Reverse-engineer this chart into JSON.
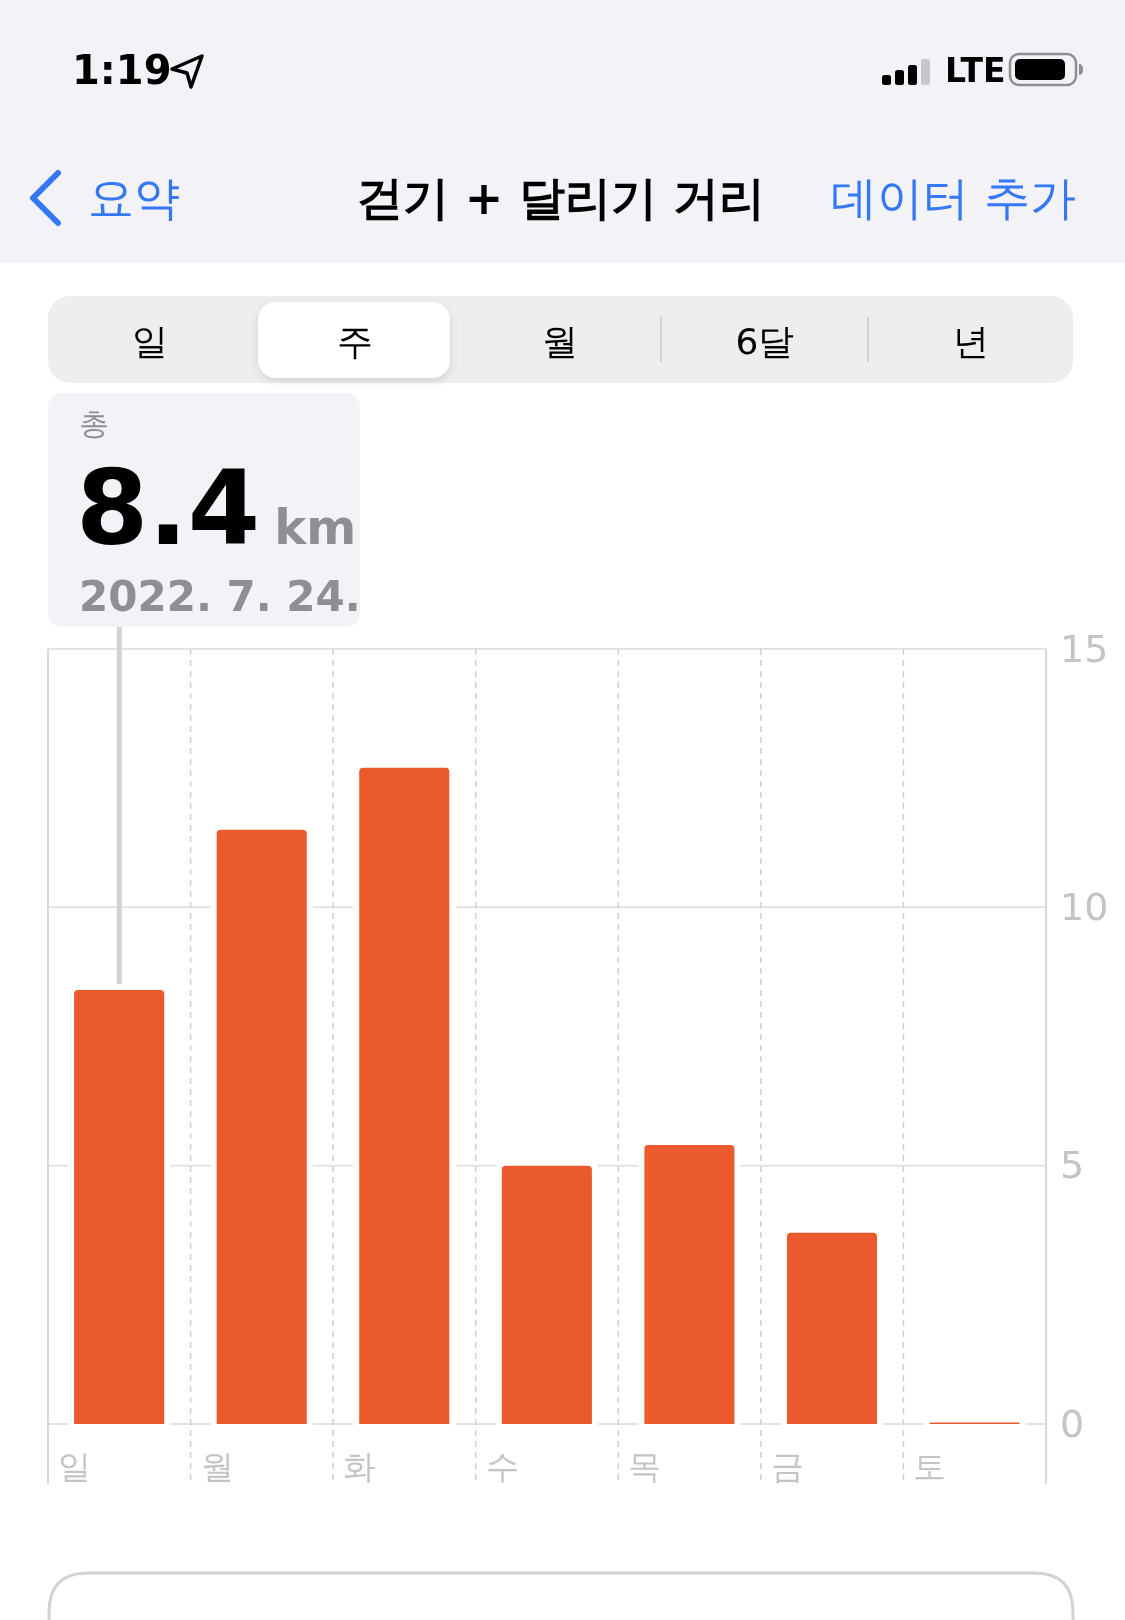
{
  "chart_data": {
    "type": "bar",
    "title": "걷기 + 달리기 거리",
    "categories": [
      "일",
      "월",
      "화",
      "수",
      "목",
      "금",
      "토"
    ],
    "values": [
      8.4,
      11.5,
      12.7,
      5.0,
      5.4,
      3.7,
      0.03
    ],
    "color": "#eb5a2c",
    "ylim": [
      0,
      15
    ],
    "yticks": [
      0,
      5,
      10,
      15
    ],
    "grid": true,
    "annotations": [
      "1:19",
      "LTE",
      "요약",
      "데이터 추가",
      "일",
      "주",
      "월",
      "6달",
      "년",
      "총",
      "8.4",
      "km",
      "2022. 7. 24."
    ]
  }
}
